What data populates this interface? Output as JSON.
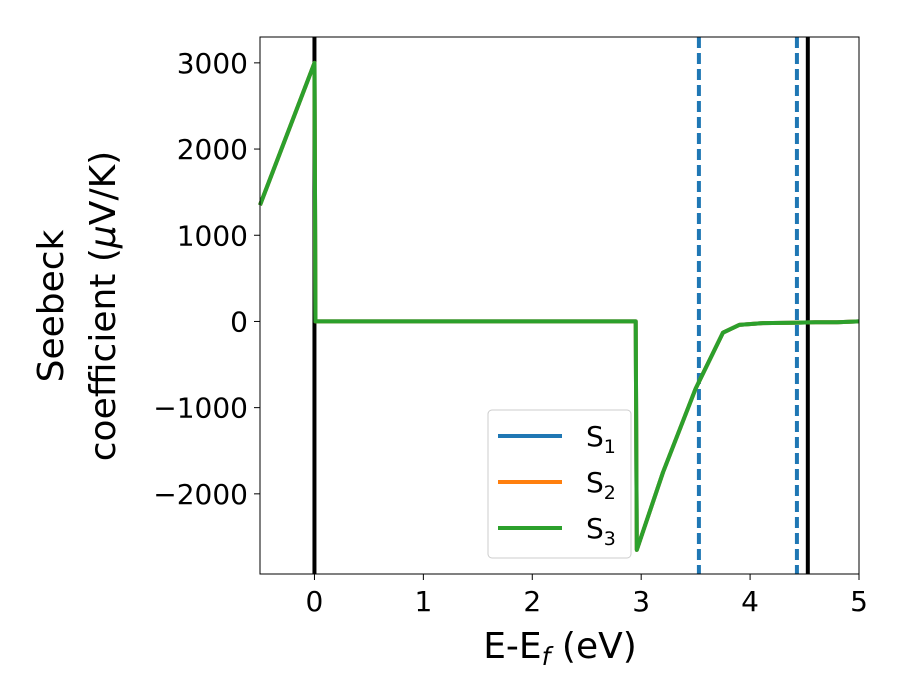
{
  "chart_data": {
    "type": "line",
    "xlabel": {
      "main": "E-E",
      "sub": "f",
      "unit": " (eV)"
    },
    "ylabel": {
      "line1": "Seebeck",
      "line2_text": "coefficient  (",
      "line2_mu": "μ",
      "line2_unit": "V/K)"
    },
    "xlim": [
      -0.5,
      5.0
    ],
    "ylim": [
      -2930,
      3300
    ],
    "xticks": [
      0,
      1,
      2,
      3,
      4,
      5
    ],
    "xtick_labels": [
      "0",
      "1",
      "2",
      "3",
      "4",
      "5"
    ],
    "yticks": [
      3000,
      2000,
      1000,
      0,
      -1000,
      -2000
    ],
    "ytick_labels": [
      "3000",
      "2000",
      "1000",
      "0",
      "−1000",
      "−2000"
    ],
    "grid": false,
    "legend_position": "lower-center",
    "series": [
      {
        "name": "S",
        "sub": "1",
        "color": "#1f77b4",
        "x": [
          -0.5,
          0.0,
          0.01,
          2.95,
          2.96,
          3.2,
          3.5,
          3.75,
          3.9,
          4.1,
          4.4,
          4.6,
          4.8,
          5.0
        ],
        "y": [
          1350,
          3000,
          0,
          0,
          -2650,
          -1750,
          -780,
          -130,
          -40,
          -20,
          -15,
          -10,
          -10,
          0
        ]
      },
      {
        "name": "S",
        "sub": "2",
        "color": "#ff7f0e",
        "x": [
          -0.5,
          0.0,
          0.01,
          2.95,
          2.96,
          3.2,
          3.5,
          3.75,
          3.9,
          4.1,
          4.4,
          4.6,
          4.8,
          5.0
        ],
        "y": [
          1350,
          3000,
          0,
          0,
          -2650,
          -1750,
          -780,
          -130,
          -40,
          -20,
          -15,
          -10,
          -10,
          0
        ]
      },
      {
        "name": "S",
        "sub": "3",
        "color": "#2ca02c",
        "x": [
          -0.5,
          0.0,
          0.01,
          2.95,
          2.96,
          3.2,
          3.5,
          3.75,
          3.9,
          4.1,
          4.4,
          4.6,
          4.8,
          5.0
        ],
        "y": [
          1350,
          3000,
          0,
          0,
          -2650,
          -1750,
          -780,
          -130,
          -40,
          -20,
          -15,
          -10,
          -10,
          0
        ]
      }
    ],
    "vlines": [
      {
        "x": 0.0,
        "color": "#000000",
        "style": "solid"
      },
      {
        "x": 3.53,
        "color": "#1f77b4",
        "style": "dashed"
      },
      {
        "x": 4.43,
        "color": "#1f77b4",
        "style": "dashed"
      },
      {
        "x": 4.53,
        "color": "#000000",
        "style": "solid"
      }
    ]
  }
}
